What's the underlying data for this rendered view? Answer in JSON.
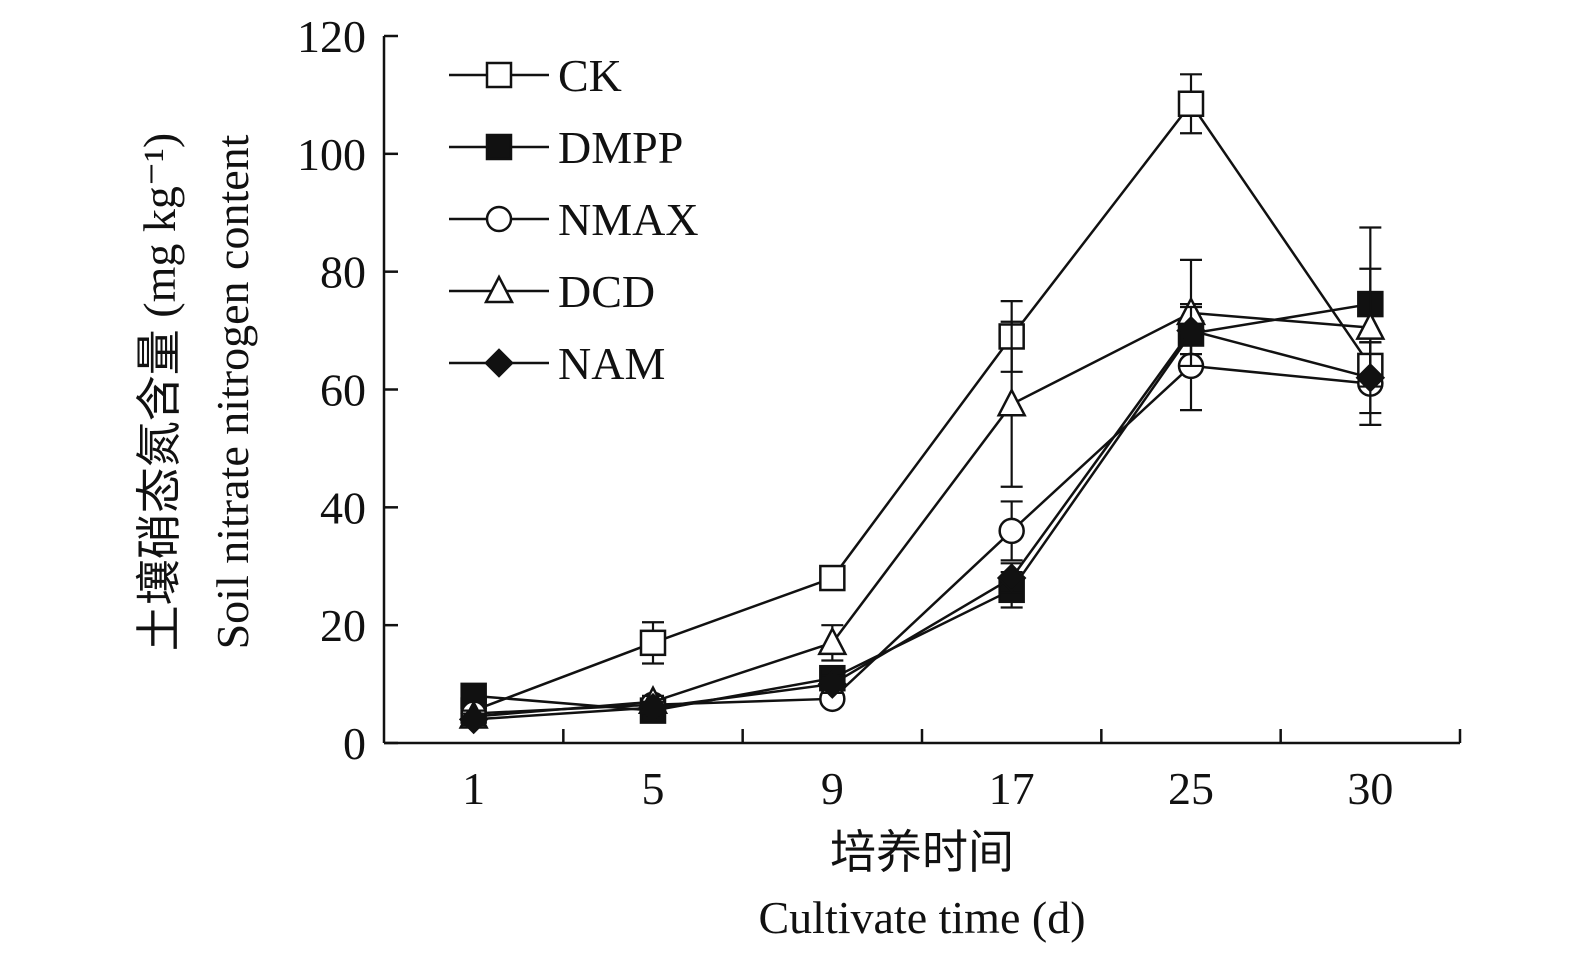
{
  "chart_data": {
    "type": "line",
    "title": "",
    "x_categories": [
      "1",
      "5",
      "9",
      "17",
      "25",
      "30"
    ],
    "xlabel_cn": "培养时间",
    "xlabel_en": "Cultivate time (d)",
    "ylabel_cn": "土壤硝态氮含量 (mg kg⁻¹)",
    "ylabel_en": "Soil nitrate nitrogen content",
    "ylim": [
      0,
      120
    ],
    "yticks": [
      "0",
      "20",
      "40",
      "60",
      "80",
      "100",
      "120"
    ],
    "grid": false,
    "legend_position": "top-left",
    "error_bars": true,
    "series": [
      {
        "name": "CK",
        "marker": "square-open",
        "values": [
          5.5,
          17,
          28,
          69,
          108.5,
          64
        ],
        "errors": [
          1,
          3.5,
          1.5,
          6,
          5,
          4
        ]
      },
      {
        "name": "DMPP",
        "marker": "square-filled",
        "values": [
          8,
          5.5,
          11,
          26,
          69.5,
          74.5
        ],
        "errors": [
          1,
          1.5,
          1.5,
          3,
          5,
          13
        ]
      },
      {
        "name": "NMAX",
        "marker": "circle-open",
        "values": [
          5,
          6.5,
          7.5,
          36,
          64,
          61
        ],
        "errors": [
          1,
          1,
          1,
          5,
          7.5,
          7
        ]
      },
      {
        "name": "DCD",
        "marker": "triangle-open",
        "values": [
          4.5,
          7,
          17,
          57.5,
          73,
          70.5
        ],
        "errors": [
          1,
          1,
          3,
          14,
          9,
          10
        ]
      },
      {
        "name": "NAM",
        "marker": "diamond-filled",
        "values": [
          4,
          6,
          10,
          28,
          70,
          62
        ],
        "errors": [
          1,
          1,
          1.5,
          2.5,
          4,
          6
        ]
      }
    ]
  }
}
